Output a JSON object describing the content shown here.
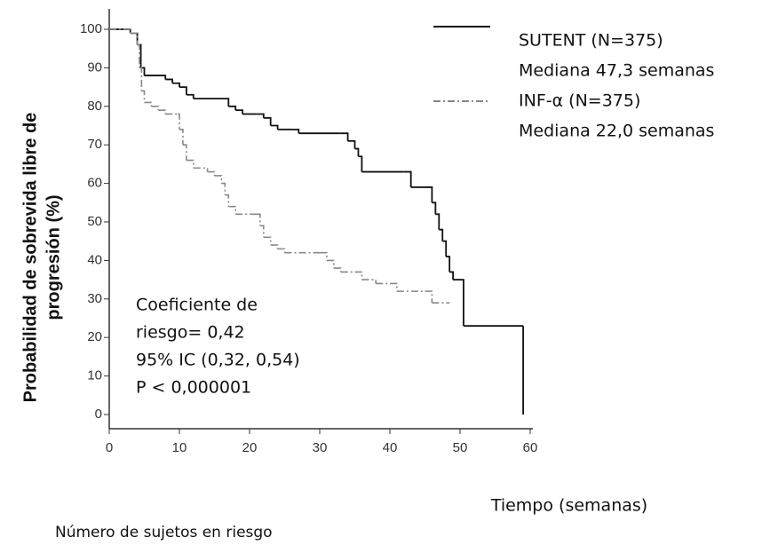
{
  "chart_data": {
    "type": "step",
    "ylabel": [
      "Probabilidad de sobrevida libre de",
      "progresión (%)"
    ],
    "xlabel": "Tiempo (semanas)",
    "footer": "Número de sujetos en riesgo",
    "annotation": [
      "Coeficiente de",
      "riesgo= 0,42",
      "95% IC (0,32, 0,54)",
      "P < 0,000001"
    ],
    "xlim": [
      0,
      60
    ],
    "xticks": [
      0,
      10,
      20,
      30,
      40,
      50,
      60
    ],
    "ylim": [
      0,
      100
    ],
    "yticks": [
      0,
      10,
      20,
      30,
      40,
      50,
      60,
      70,
      80,
      90,
      100
    ],
    "series": [
      {
        "name": "SUTENT (N=375)",
        "note": "Mediana 47,3 semanas",
        "color": "#111111",
        "dashed": false,
        "x": [
          0,
          2,
          3,
          4,
          4.5,
          5,
          8,
          9,
          10,
          11,
          12,
          16,
          17,
          18,
          19,
          21,
          22,
          23,
          24,
          26,
          27,
          33,
          34,
          35,
          35.5,
          36,
          42,
          43,
          45,
          46,
          46.5,
          47,
          47.5,
          48,
          48.5,
          49,
          50,
          50.5,
          59,
          59
        ],
        "values": [
          100,
          100,
          99,
          96,
          90,
          88,
          87,
          86,
          85,
          83,
          82,
          82,
          80,
          79,
          78,
          78,
          77,
          75,
          74,
          74,
          73,
          73,
          71,
          69,
          67,
          63,
          63,
          59,
          59,
          55,
          52,
          48,
          45,
          41,
          37,
          35,
          35,
          23,
          23,
          0
        ]
      },
      {
        "name": "INF-α (N=375)",
        "note": "Mediana 22,0 semanas",
        "color": "#888888",
        "dashed": true,
        "x": [
          0,
          3,
          4,
          4.3,
          4.6,
          5,
          6,
          7,
          8,
          9.8,
          10,
          10.5,
          11,
          12,
          14,
          15,
          16,
          16.5,
          17,
          18,
          21,
          21.5,
          22,
          23,
          24,
          25,
          30,
          31,
          32,
          33,
          35,
          36,
          38,
          40,
          41,
          45,
          46,
          48.5
        ],
        "values": [
          100,
          99,
          96,
          90,
          84,
          81,
          80,
          79,
          78,
          78,
          74,
          70,
          66,
          64,
          63,
          62,
          60,
          57,
          54,
          52,
          52,
          49,
          46,
          44,
          43,
          42,
          42,
          40,
          38,
          37,
          37,
          35,
          34,
          34,
          32,
          32,
          29,
          29
        ]
      }
    ]
  }
}
